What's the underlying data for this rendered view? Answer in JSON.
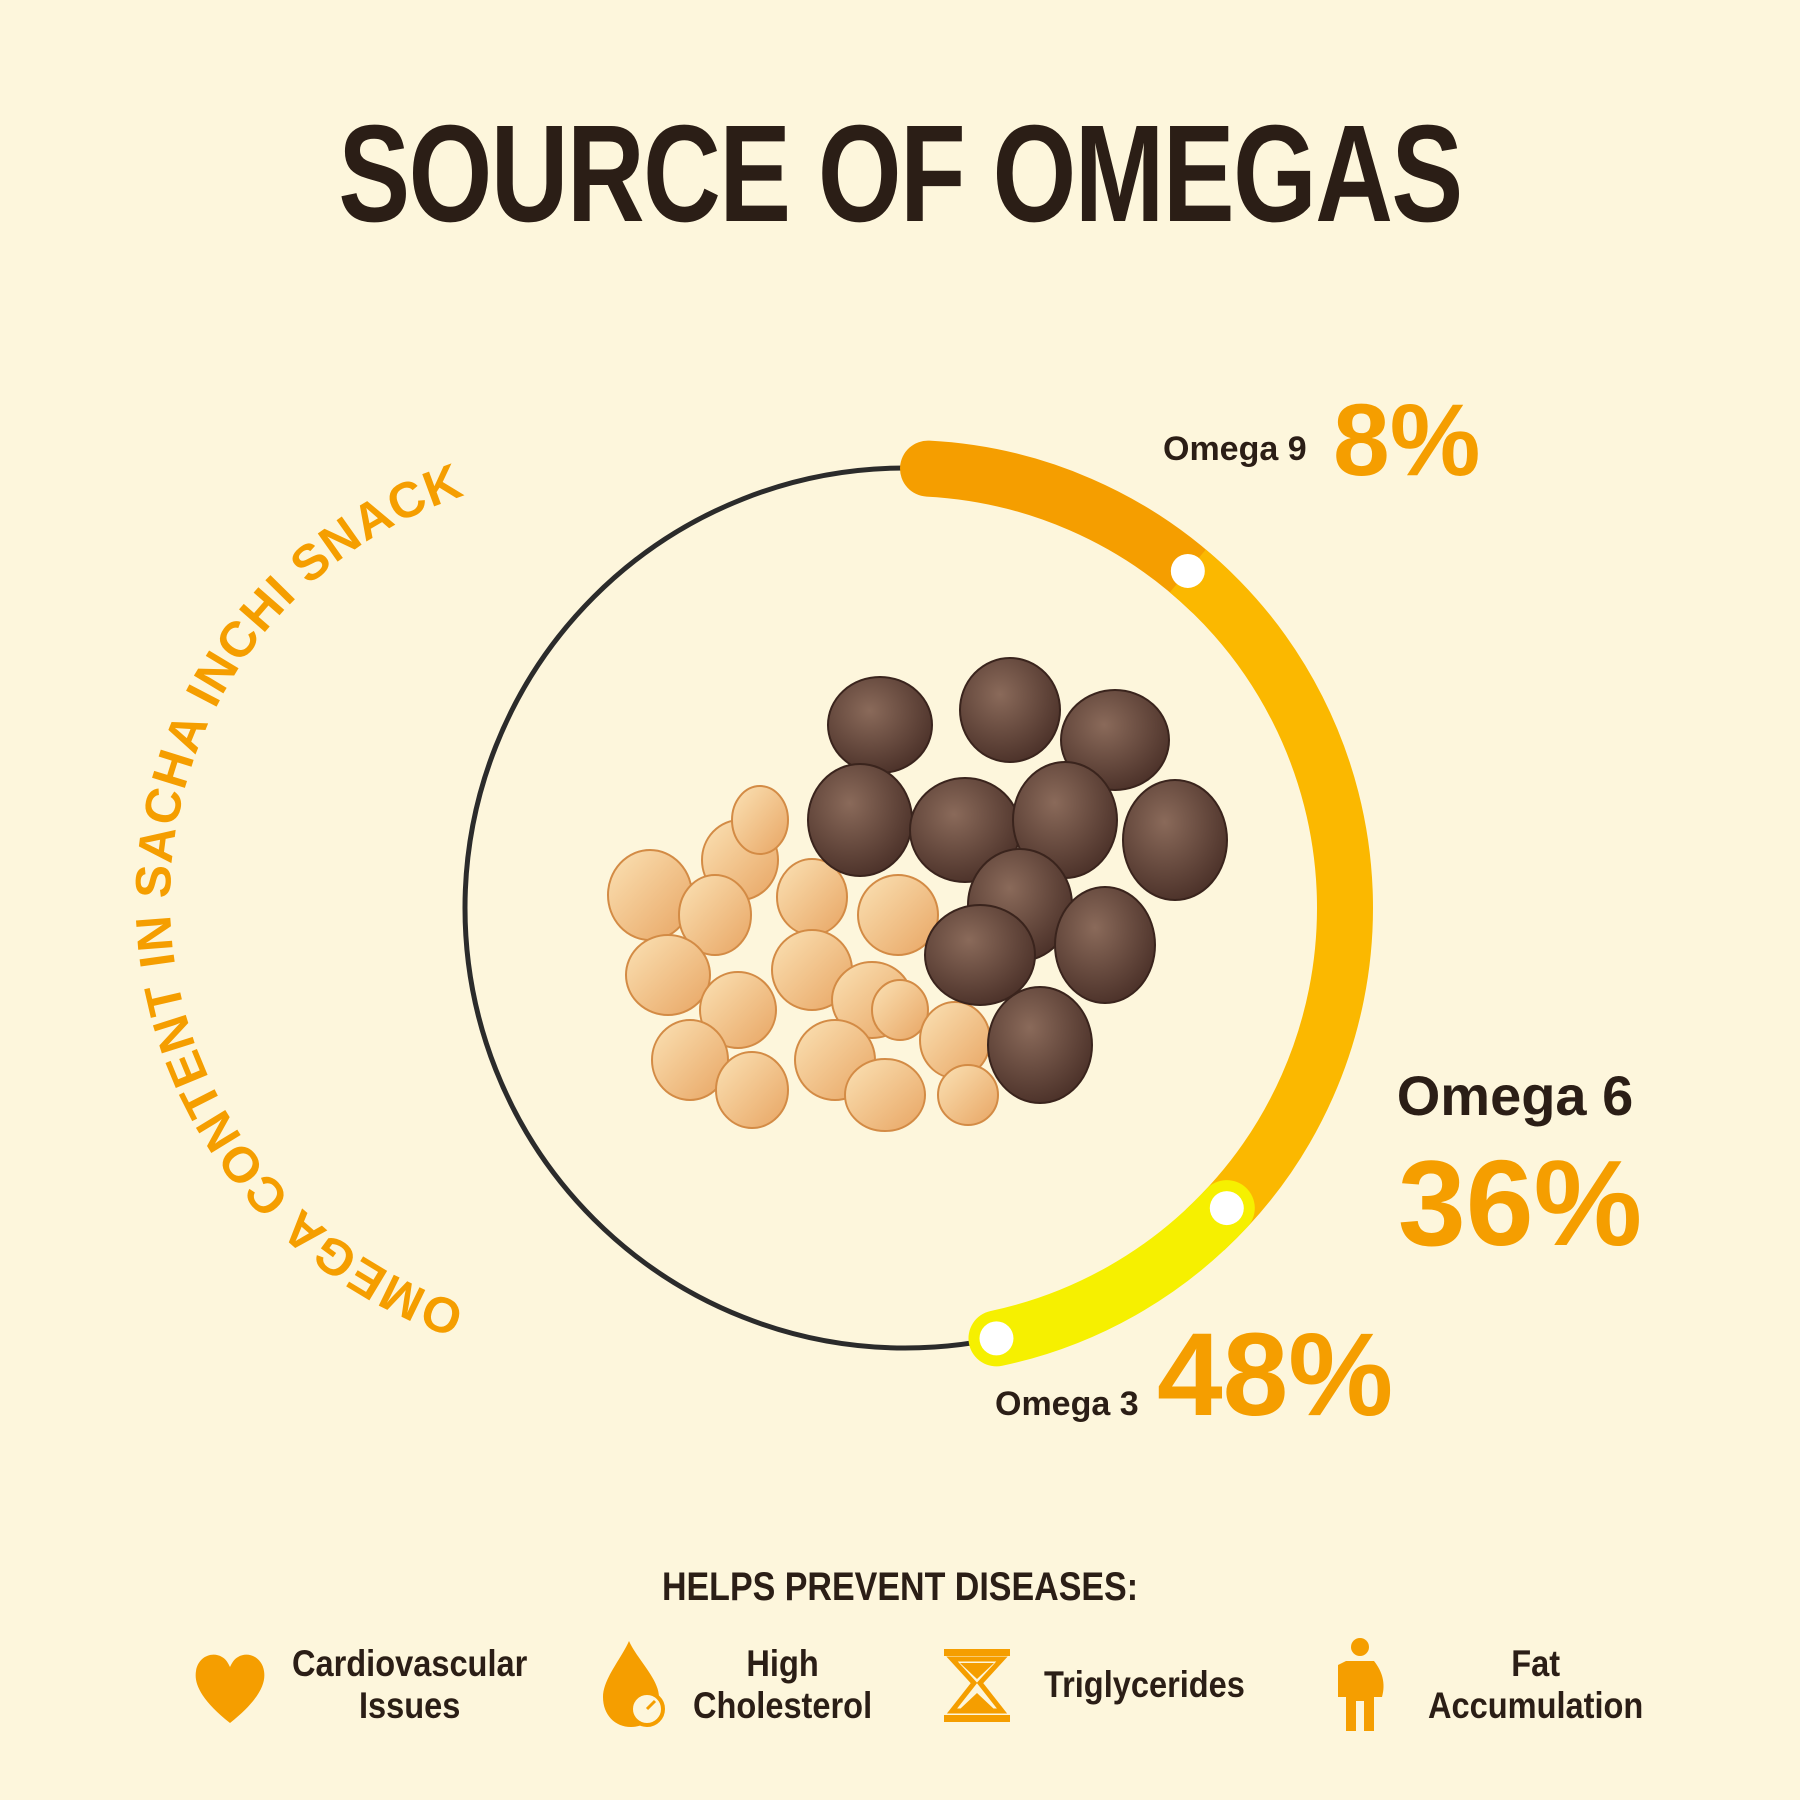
{
  "title": "SOURCE OF OMEGAS",
  "arc_caption": "OMEGA CONTENT IN SACHA INCHI SNACK",
  "chart_data": {
    "type": "donut-arc",
    "title": "SOURCE OF OMEGAS",
    "series": [
      {
        "name": "Omega 9",
        "label": "8%",
        "value": 8
      },
      {
        "name": "Omega 6",
        "label": "36%",
        "value": 36
      },
      {
        "name": "Omega 3",
        "label": "48%",
        "value": 48
      }
    ]
  },
  "colors": {
    "background": "#fdf6dc",
    "text": "#2b1e16",
    "accent": "#f59e00",
    "omega9": "#f59e00",
    "omega6": "#fbb800",
    "omega3": "#f6f000",
    "ring": "#2b2b2b"
  },
  "benefits": {
    "heading": "HELPS PREVENT DISEASES:",
    "items": [
      {
        "icon": "heart-icon",
        "label": "Cardiovascular\nIssues"
      },
      {
        "icon": "drop-gauge-icon",
        "label": "High\nCholesterol"
      },
      {
        "icon": "hourglass-icon",
        "label": "Triglycerides"
      },
      {
        "icon": "body-icon",
        "label": "Fat\nAccumulation"
      }
    ]
  }
}
